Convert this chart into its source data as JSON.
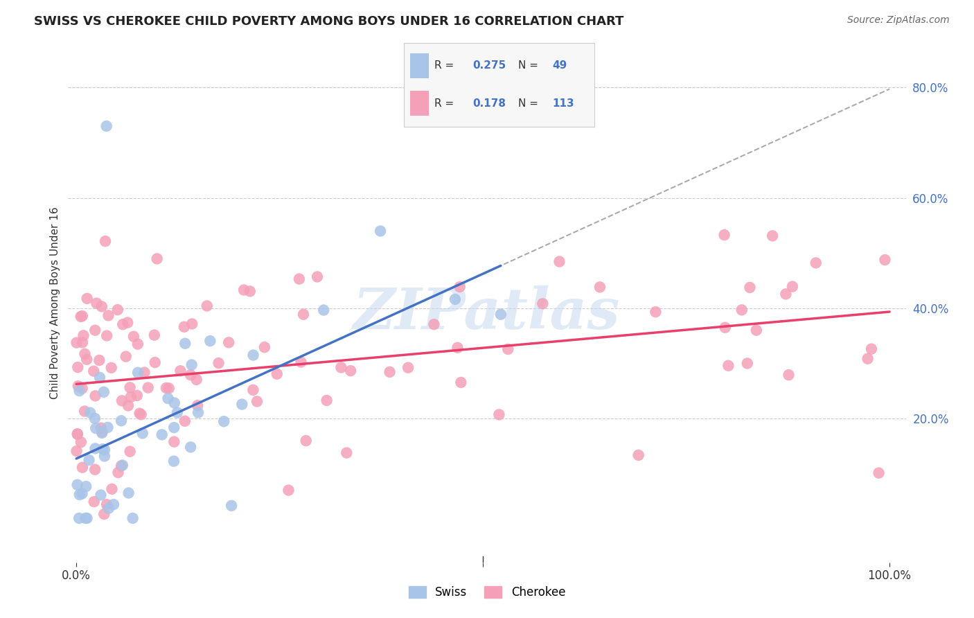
{
  "title": "SWISS VS CHEROKEE CHILD POVERTY AMONG BOYS UNDER 16 CORRELATION CHART",
  "source": "Source: ZipAtlas.com",
  "ylabel": "Child Poverty Among Boys Under 16",
  "swiss_R": "0.275",
  "swiss_N": "49",
  "cherokee_R": "0.178",
  "cherokee_N": "113",
  "swiss_color": "#a8c4e8",
  "cherokee_color": "#f4a0b8",
  "swiss_line_color": "#4472c4",
  "cherokee_line_color": "#e8406a",
  "dashed_line_color": "#aaaaaa",
  "background_color": "#ffffff",
  "grid_color": "#cccccc",
  "title_fontsize": 13,
  "right_tick_color": "#4472c4",
  "watermark_text": "ZIPatlas",
  "watermark_color": "#c8daf0"
}
